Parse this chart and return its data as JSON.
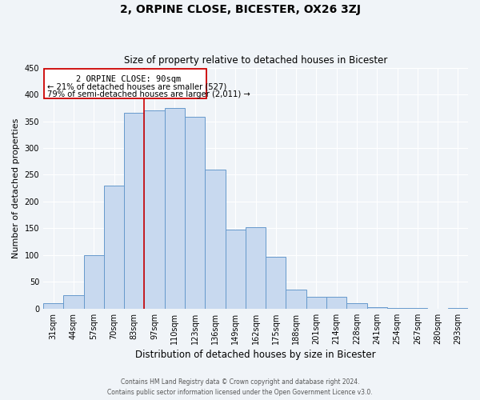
{
  "title": "2, ORPINE CLOSE, BICESTER, OX26 3ZJ",
  "subtitle": "Size of property relative to detached houses in Bicester",
  "xlabel": "Distribution of detached houses by size in Bicester",
  "ylabel": "Number of detached properties",
  "bar_labels": [
    "31sqm",
    "44sqm",
    "57sqm",
    "70sqm",
    "83sqm",
    "97sqm",
    "110sqm",
    "123sqm",
    "136sqm",
    "149sqm",
    "162sqm",
    "175sqm",
    "188sqm",
    "201sqm",
    "214sqm",
    "228sqm",
    "241sqm",
    "254sqm",
    "267sqm",
    "280sqm",
    "293sqm"
  ],
  "bar_values": [
    10,
    25,
    100,
    230,
    365,
    370,
    375,
    358,
    260,
    147,
    152,
    97,
    35,
    22,
    22,
    10,
    3,
    1,
    1,
    0,
    1
  ],
  "bar_color": "#c8d9ef",
  "bar_edge_color": "#6699cc",
  "ylim": [
    0,
    450
  ],
  "yticks": [
    0,
    50,
    100,
    150,
    200,
    250,
    300,
    350,
    400,
    450
  ],
  "property_line_label": "2 ORPINE CLOSE: 90sqm",
  "annotation_line1": "← 21% of detached houses are smaller (527)",
  "annotation_line2": "79% of semi-detached houses are larger (2,011) →",
  "box_color": "#cc0000",
  "footer_line1": "Contains HM Land Registry data © Crown copyright and database right 2024.",
  "footer_line2": "Contains public sector information licensed under the Open Government Licence v3.0.",
  "bg_color": "#f0f4f8"
}
